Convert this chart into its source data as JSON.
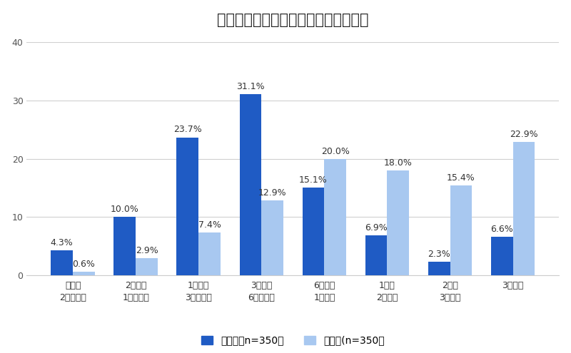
{
  "title": "経験者の売却期間と検討者の想定期間",
  "categories": [
    "即日～\n2週間未満",
    "2週間～\n1ヵ月未満",
    "1ヵ月～\n3ヵ月未満",
    "3ヵ月～\n6ヵ月未満",
    "6ヵ月～\n1年未満",
    "1年～\n2年未満",
    "2年～\n3年未満",
    "3年以上"
  ],
  "series1_label": "経験者（n=350）",
  "series2_label": "検討者(n=350）",
  "series1_values": [
    4.3,
    10.0,
    23.7,
    31.1,
    15.1,
    6.9,
    2.3,
    6.6
  ],
  "series2_values": [
    0.6,
    2.9,
    7.4,
    12.9,
    20.0,
    18.0,
    15.4,
    22.9
  ],
  "series1_color": "#1f5bc4",
  "series2_color": "#a8c8f0",
  "series1_labels": [
    "4.3%",
    "10.0%",
    "23.7%",
    "31.1%",
    "15.1%",
    "6.9%",
    "2.3%",
    "6.6%"
  ],
  "series2_labels": [
    "0.6%",
    "2.9%",
    "7.4%",
    "12.9%",
    "20.0%",
    "18.0%",
    "15.4%",
    "22.9%"
  ],
  "ylim": [
    0,
    40
  ],
  "yticks": [
    0,
    10,
    20,
    30,
    40
  ],
  "background_color": "#ffffff",
  "grid_color": "#d0d0d0",
  "bar_width": 0.35,
  "title_fontsize": 15,
  "label_fontsize": 9,
  "tick_fontsize": 9,
  "legend_fontsize": 10
}
